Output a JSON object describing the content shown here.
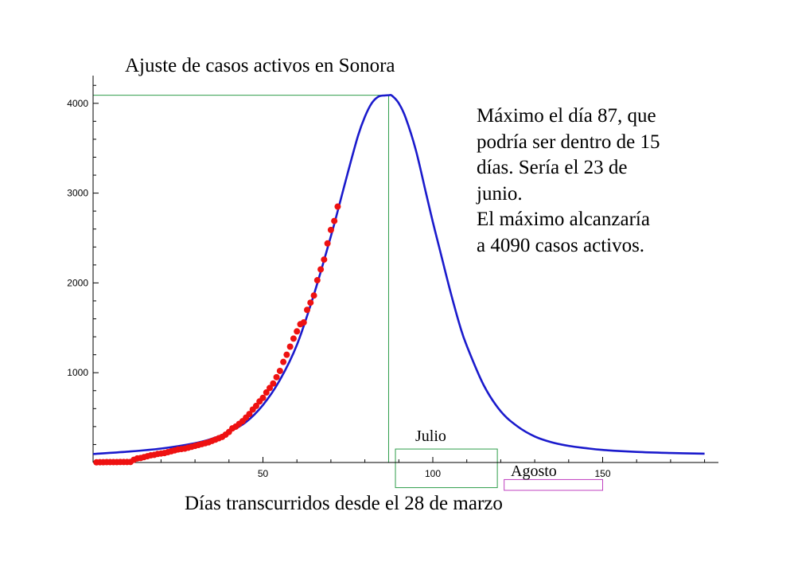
{
  "chart_data": {
    "type": "line",
    "title": "Ajuste de casos activos en Sonora",
    "xlabel": "Días transcurridos desde el 28 de marzo",
    "ylabel": "",
    "xlim": [
      0,
      183
    ],
    "ylim": [
      0,
      4300
    ],
    "x_ticks": [
      50,
      100,
      150
    ],
    "y_ticks": [
      1000,
      2000,
      3000,
      4000
    ],
    "fit_curve": {
      "name": "Ajuste",
      "color": "#1a1acc",
      "peak_day": 87,
      "peak_value": 4090,
      "x": [
        0,
        10,
        20,
        30,
        35,
        40,
        45,
        50,
        55,
        60,
        65,
        70,
        72,
        75,
        78,
        80,
        82,
        84,
        86,
        87,
        88,
        90,
        92,
        95,
        98,
        100,
        102,
        105,
        108,
        110,
        115,
        120,
        125,
        130,
        135,
        140,
        145,
        150,
        160,
        170,
        180
      ],
      "y": [
        95,
        120,
        155,
        215,
        265,
        340,
        450,
        640,
        920,
        1310,
        1870,
        2520,
        2800,
        3230,
        3640,
        3850,
        4000,
        4075,
        4088,
        4090,
        4085,
        4000,
        3840,
        3480,
        3000,
        2680,
        2380,
        1930,
        1520,
        1300,
        860,
        570,
        400,
        290,
        225,
        185,
        160,
        140,
        118,
        106,
        98
      ]
    },
    "data_series": {
      "name": "Casos activos",
      "color": "#ee1111",
      "x": [
        1,
        2,
        3,
        4,
        5,
        6,
        7,
        8,
        9,
        10,
        11,
        12,
        13,
        14,
        15,
        16,
        17,
        18,
        19,
        20,
        21,
        22,
        23,
        24,
        25,
        26,
        27,
        28,
        29,
        30,
        31,
        32,
        33,
        34,
        35,
        36,
        37,
        38,
        39,
        40,
        41,
        42,
        43,
        44,
        45,
        46,
        47,
        48,
        49,
        50,
        51,
        52,
        53,
        54,
        55,
        56,
        57,
        58,
        59,
        60,
        61,
        62,
        63,
        64,
        65,
        66,
        67,
        68,
        69,
        70,
        71,
        72
      ],
      "y": [
        2,
        3,
        3,
        4,
        4,
        4,
        4,
        5,
        5,
        5,
        6,
        30,
        45,
        50,
        60,
        70,
        80,
        85,
        95,
        100,
        105,
        115,
        125,
        135,
        145,
        150,
        155,
        165,
        175,
        185,
        195,
        205,
        215,
        225,
        240,
        255,
        270,
        285,
        310,
        340,
        380,
        400,
        430,
        460,
        500,
        540,
        590,
        630,
        680,
        720,
        780,
        830,
        880,
        950,
        1020,
        1120,
        1200,
        1290,
        1380,
        1460,
        1540,
        1560,
        1700,
        1780,
        1860,
        2030,
        2150,
        2260,
        2440,
        2590,
        2690,
        2850
      ]
    },
    "reference_lines": [
      {
        "orientation": "vertical",
        "x": 87,
        "color": "#2e9d4a"
      },
      {
        "orientation": "horizontal",
        "y": 4090,
        "color": "#2e9d4a"
      }
    ],
    "month_boxes": [
      {
        "label": "Julio",
        "x_from": 89,
        "x_to": 119,
        "y_from": -280,
        "y_to": 150,
        "color": "#2e9d4a"
      },
      {
        "label": "Agosto",
        "x_from": 121,
        "x_to": 150,
        "y_from": -310,
        "y_to": -190,
        "color": "#c040c0"
      }
    ],
    "annotation": {
      "lines": [
        "Máximo el día 87, que",
        "podría ser dentro de 15",
        "días. Sería el 23 de",
        "junio.",
        "El máximo alcanzaría",
        "a 4090 casos activos."
      ]
    }
  }
}
